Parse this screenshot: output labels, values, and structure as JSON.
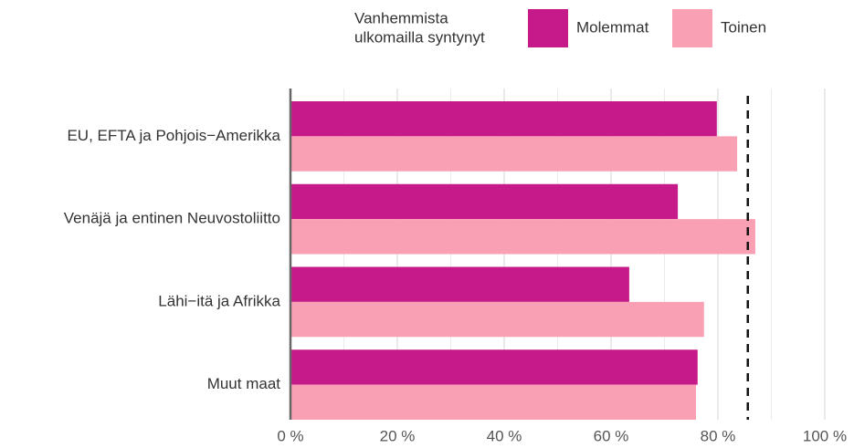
{
  "chart_data": {
    "type": "barh",
    "legend_title": [
      "Vanhemmista",
      "ulkomailla syntynyt"
    ],
    "categories": [
      "EU, EFTA ja Pohjois−Amerikka",
      "Venäjä ja entinen Neuvostoliitto",
      "Lähi−itä ja Afrikka",
      "Muut maat"
    ],
    "series": [
      {
        "name": "Molemmat",
        "color": "#c71a8a",
        "values": [
          79.8,
          72.5,
          63.4,
          76.2
        ]
      },
      {
        "name": "Toinen",
        "color": "#f9a0b4",
        "values": [
          83.6,
          87.0,
          77.4,
          75.9
        ]
      }
    ],
    "xlim": [
      0,
      100
    ],
    "xticks": [
      {
        "value": 0,
        "label": "0 %"
      },
      {
        "value": 20,
        "label": "20 %"
      },
      {
        "value": 40,
        "label": "40 %"
      },
      {
        "value": 60,
        "label": "60 %"
      },
      {
        "value": 80,
        "label": "80 %"
      },
      {
        "value": 100,
        "label": "100 %"
      }
    ],
    "x_minor_ticks": [
      10,
      30,
      50,
      70,
      90
    ],
    "reference_line": 85.6,
    "grid": true,
    "legend": "top"
  }
}
